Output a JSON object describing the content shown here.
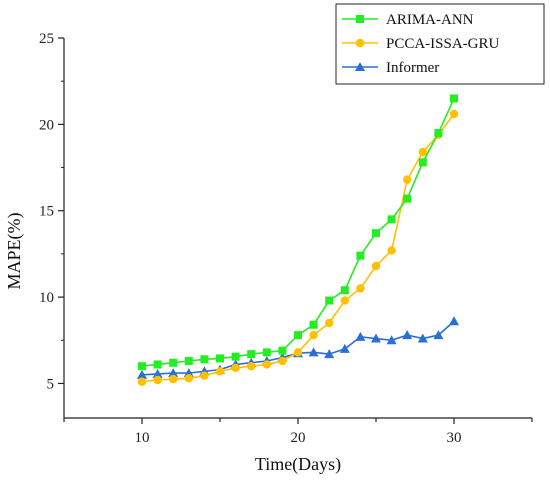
{
  "chart_data": {
    "type": "line",
    "title": "",
    "xlabel": "Time(Days)",
    "ylabel": "MAPE(%)",
    "xlim": [
      5,
      35
    ],
    "ylim": [
      3,
      25
    ],
    "xticks": [
      "10",
      "20",
      "30"
    ],
    "yticks": [
      "5",
      "10",
      "15",
      "20",
      "25"
    ],
    "x": [
      10,
      11,
      12,
      13,
      14,
      15,
      16,
      17,
      18,
      19,
      20,
      21,
      22,
      23,
      24,
      25,
      26,
      27,
      28,
      29,
      30
    ],
    "legend_position": "top-right",
    "series": [
      {
        "name": "ARIMA-ANN",
        "color": "#22ee22",
        "marker": "square",
        "values": [
          6.0,
          6.1,
          6.2,
          6.3,
          6.4,
          6.45,
          6.55,
          6.7,
          6.8,
          6.9,
          7.8,
          8.4,
          9.8,
          10.4,
          12.4,
          13.7,
          14.5,
          15.7,
          17.8,
          19.5,
          21.5
        ]
      },
      {
        "name": "PCCA-ISSA-GRU",
        "color": "#ffc000",
        "marker": "circle",
        "values": [
          5.1,
          5.2,
          5.25,
          5.3,
          5.45,
          5.7,
          5.9,
          6.0,
          6.1,
          6.3,
          6.8,
          7.8,
          8.5,
          9.8,
          10.5,
          11.8,
          12.7,
          16.8,
          18.4,
          19.4,
          20.6
        ]
      },
      {
        "name": "Informer",
        "color": "#2a6fd6",
        "marker": "triangle",
        "values": [
          5.5,
          5.55,
          5.6,
          5.6,
          5.7,
          5.8,
          6.1,
          6.2,
          6.3,
          6.5,
          6.75,
          6.8,
          6.7,
          7.0,
          7.7,
          7.6,
          7.5,
          7.8,
          7.6,
          7.8,
          8.6
        ]
      }
    ]
  }
}
